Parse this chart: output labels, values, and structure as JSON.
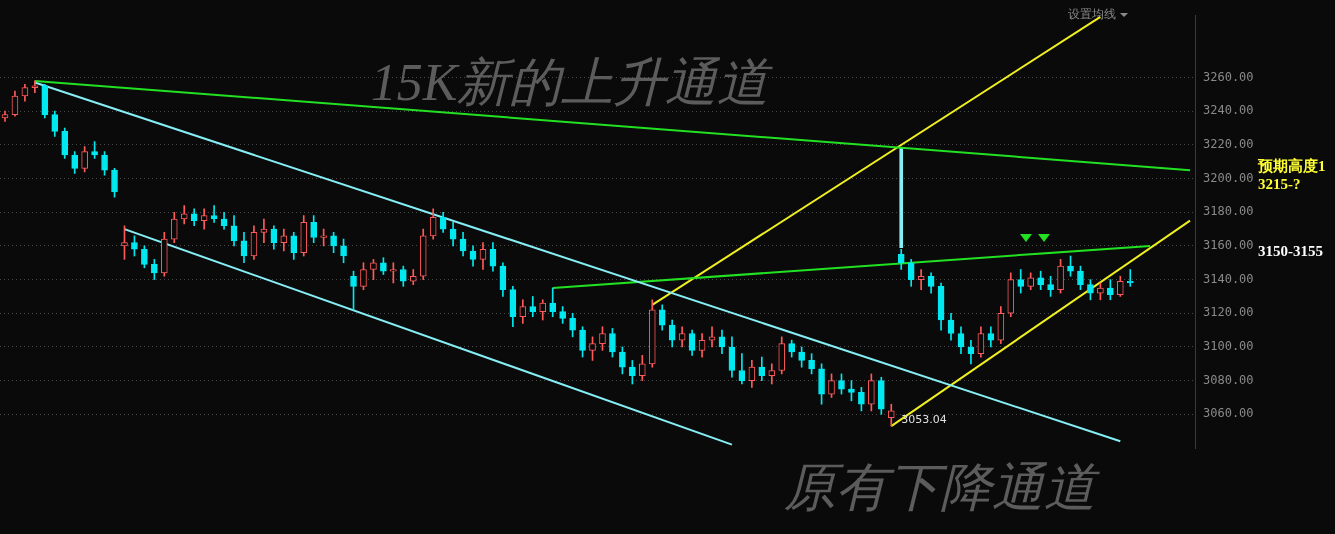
{
  "chart_data": {
    "type": "candlestick",
    "title": "15K新的上升通道",
    "categories": [
      null,
      null,
      null,
      null,
      null,
      null,
      null,
      null,
      null,
      null,
      null,
      null,
      null,
      null,
      null,
      null,
      null,
      null,
      null,
      null,
      null,
      null,
      null,
      null,
      null,
      null,
      null,
      null,
      null,
      null,
      null,
      null,
      null,
      null,
      null,
      null,
      null,
      null,
      null,
      null,
      null,
      null,
      null,
      null,
      null,
      null,
      null,
      null,
      null,
      null,
      null,
      null,
      null,
      null,
      null,
      null,
      null,
      null,
      null,
      null,
      null,
      null,
      null,
      null,
      null,
      null,
      null,
      null,
      null,
      null,
      null,
      null,
      null,
      null,
      null,
      null,
      null,
      null,
      null,
      null,
      null,
      null,
      null,
      null,
      null,
      null,
      null,
      null,
      null,
      null,
      null,
      null,
      null,
      null,
      null,
      null,
      null,
      null,
      null,
      null,
      null,
      null,
      null,
      null,
      null,
      null,
      null,
      null,
      null,
      null,
      null,
      null,
      null,
      null,
      null,
      null,
      null,
      null,
      null,
      null
    ],
    "series": [
      {
        "ohlc": [
          [
            3236,
            3240,
            3234,
            3238
          ],
          [
            3238,
            3252,
            3237,
            3249
          ],
          [
            3249,
            3256,
            3246,
            3254
          ],
          [
            3254,
            3258,
            3251,
            3255
          ],
          [
            3255,
            3256,
            3236,
            3238
          ],
          [
            3238,
            3240,
            3225,
            3228
          ],
          [
            3228,
            3230,
            3212,
            3214
          ],
          [
            3214,
            3216,
            3203,
            3206
          ],
          [
            3206,
            3219,
            3204,
            3216
          ],
          [
            3216,
            3222,
            3212,
            3214
          ],
          [
            3214,
            3216,
            3202,
            3205
          ],
          [
            3205,
            3206,
            3189,
            3192
          ],
          [
            3160,
            3172,
            3152,
            3162
          ],
          [
            3162,
            3166,
            3154,
            3158
          ],
          [
            3158,
            3160,
            3147,
            3149
          ],
          [
            3149,
            3152,
            3140,
            3144
          ],
          [
            3144,
            3168,
            3142,
            3164
          ],
          [
            3164,
            3180,
            3162,
            3176
          ],
          [
            3176,
            3184,
            3173,
            3179
          ],
          [
            3179,
            3182,
            3172,
            3175
          ],
          [
            3175,
            3182,
            3170,
            3178
          ],
          [
            3178,
            3184,
            3174,
            3176
          ],
          [
            3176,
            3180,
            3170,
            3172
          ],
          [
            3172,
            3178,
            3160,
            3163
          ],
          [
            3163,
            3168,
            3150,
            3154
          ],
          [
            3154,
            3172,
            3152,
            3168
          ],
          [
            3168,
            3176,
            3162,
            3170
          ],
          [
            3170,
            3172,
            3158,
            3162
          ],
          [
            3162,
            3170,
            3157,
            3166
          ],
          [
            3166,
            3168,
            3152,
            3156
          ],
          [
            3156,
            3178,
            3154,
            3174
          ],
          [
            3174,
            3178,
            3162,
            3165
          ],
          [
            3165,
            3170,
            3160,
            3166
          ],
          [
            3166,
            3168,
            3156,
            3160
          ],
          [
            3160,
            3164,
            3150,
            3154
          ],
          [
            3142,
            3145,
            3122,
            3136
          ],
          [
            3136,
            3150,
            3134,
            3146
          ],
          [
            3146,
            3152,
            3140,
            3150
          ],
          [
            3150,
            3153,
            3143,
            3145
          ],
          [
            3145,
            3150,
            3138,
            3146
          ],
          [
            3146,
            3148,
            3136,
            3139
          ],
          [
            3139,
            3146,
            3137,
            3142
          ],
          [
            3142,
            3170,
            3140,
            3166
          ],
          [
            3166,
            3182,
            3164,
            3177
          ],
          [
            3177,
            3180,
            3168,
            3170
          ],
          [
            3170,
            3174,
            3160,
            3164
          ],
          [
            3164,
            3168,
            3154,
            3157
          ],
          [
            3157,
            3160,
            3148,
            3152
          ],
          [
            3152,
            3162,
            3146,
            3158
          ],
          [
            3158,
            3162,
            3145,
            3148
          ],
          [
            3148,
            3150,
            3130,
            3134
          ],
          [
            3134,
            3136,
            3112,
            3118
          ],
          [
            3118,
            3128,
            3114,
            3124
          ],
          [
            3124,
            3130,
            3118,
            3121
          ],
          [
            3121,
            3128,
            3116,
            3126
          ],
          [
            3126,
            3135,
            3118,
            3121
          ],
          [
            3121,
            3124,
            3114,
            3117
          ],
          [
            3117,
            3120,
            3106,
            3110
          ],
          [
            3110,
            3112,
            3094,
            3098
          ],
          [
            3098,
            3106,
            3092,
            3102
          ],
          [
            3102,
            3112,
            3098,
            3108
          ],
          [
            3108,
            3111,
            3094,
            3097
          ],
          [
            3097,
            3100,
            3084,
            3088
          ],
          [
            3088,
            3092,
            3078,
            3083
          ],
          [
            3083,
            3095,
            3080,
            3090
          ],
          [
            3090,
            3128,
            3088,
            3122
          ],
          [
            3122,
            3125,
            3110,
            3113
          ],
          [
            3113,
            3116,
            3100,
            3104
          ],
          [
            3104,
            3112,
            3100,
            3108
          ],
          [
            3108,
            3110,
            3095,
            3098
          ],
          [
            3098,
            3108,
            3094,
            3104
          ],
          [
            3104,
            3112,
            3100,
            3106
          ],
          [
            3106,
            3110,
            3096,
            3100
          ],
          [
            3100,
            3106,
            3082,
            3086
          ],
          [
            3086,
            3096,
            3078,
            3080
          ],
          [
            3080,
            3092,
            3076,
            3088
          ],
          [
            3088,
            3094,
            3080,
            3083
          ],
          [
            3083,
            3090,
            3078,
            3086
          ],
          [
            3086,
            3106,
            3084,
            3102
          ],
          [
            3102,
            3104,
            3094,
            3097
          ],
          [
            3097,
            3100,
            3088,
            3092
          ],
          [
            3092,
            3096,
            3084,
            3087
          ],
          [
            3087,
            3090,
            3066,
            3072
          ],
          [
            3072,
            3084,
            3070,
            3080
          ],
          [
            3080,
            3084,
            3072,
            3075
          ],
          [
            3075,
            3080,
            3068,
            3073
          ],
          [
            3073,
            3076,
            3062,
            3066
          ],
          [
            3066,
            3084,
            3062,
            3080
          ],
          [
            3080,
            3082,
            3060,
            3063
          ],
          [
            3058,
            3066,
            3053.04,
            3062
          ],
          [
            3155,
            3158,
            3146,
            3150
          ],
          [
            3150,
            3152,
            3136,
            3140
          ],
          [
            3140,
            3146,
            3134,
            3142
          ],
          [
            3142,
            3144,
            3132,
            3136
          ],
          [
            3136,
            3138,
            3110,
            3116
          ],
          [
            3116,
            3120,
            3104,
            3108
          ],
          [
            3108,
            3112,
            3096,
            3100
          ],
          [
            3100,
            3104,
            3090,
            3096
          ],
          [
            3096,
            3112,
            3094,
            3108
          ],
          [
            3108,
            3112,
            3100,
            3104
          ],
          [
            3104,
            3124,
            3102,
            3120
          ],
          [
            3120,
            3144,
            3118,
            3140
          ],
          [
            3140,
            3146,
            3132,
            3136
          ],
          [
            3136,
            3144,
            3134,
            3141
          ],
          [
            3141,
            3145,
            3134,
            3137
          ],
          [
            3137,
            3142,
            3130,
            3134
          ],
          [
            3134,
            3152,
            3132,
            3148
          ],
          [
            3148,
            3154,
            3142,
            3145
          ],
          [
            3145,
            3148,
            3134,
            3137
          ],
          [
            3137,
            3140,
            3128,
            3132
          ],
          [
            3132,
            3138,
            3128,
            3135
          ],
          [
            3135,
            3140,
            3128,
            3131
          ],
          [
            3131,
            3142,
            3130,
            3139
          ],
          [
            3139,
            3146,
            3136,
            3138
          ],
          null,
          null,
          null,
          null,
          null,
          null
        ]
      },
      {
        "type": "line",
        "color": "#22e022",
        "values": [
          null,
          null,
          null,
          3258,
          null,
          null,
          null,
          null,
          null,
          null,
          null,
          null,
          null,
          null,
          null,
          null,
          null,
          null,
          null,
          null,
          null,
          null,
          null,
          null,
          null,
          null,
          null,
          null,
          null,
          null,
          null,
          null,
          null,
          null,
          null,
          null,
          null,
          null,
          null,
          null,
          null,
          null,
          null,
          null,
          null,
          null,
          null,
          null,
          null,
          null,
          null,
          null,
          null,
          null,
          null,
          null,
          null,
          null,
          null,
          null,
          null,
          null,
          null,
          null,
          null,
          null,
          null,
          null,
          null,
          null,
          null,
          null,
          null,
          null,
          null,
          null,
          null,
          null,
          null,
          null,
          null,
          null,
          null,
          null,
          null,
          null,
          null,
          null,
          null,
          null,
          null,
          null,
          null,
          null,
          null,
          null,
          null,
          null,
          null,
          null,
          null,
          null,
          null,
          null,
          null,
          null,
          null,
          null,
          null,
          null,
          null,
          null,
          null,
          null,
          null,
          null,
          null,
          null,
          null,
          3205
        ]
      },
      {
        "type": "line",
        "color": "#86eef5",
        "values": [
          null,
          null,
          null,
          3257,
          null,
          null,
          null,
          null,
          null,
          null,
          null,
          null,
          null,
          null,
          null,
          null,
          null,
          null,
          null,
          null,
          null,
          null,
          null,
          null,
          null,
          null,
          null,
          null,
          null,
          null,
          null,
          null,
          null,
          null,
          null,
          null,
          null,
          null,
          null,
          null,
          null,
          null,
          null,
          null,
          null,
          null,
          null,
          null,
          null,
          null,
          null,
          null,
          null,
          null,
          null,
          null,
          null,
          null,
          null,
          null,
          null,
          null,
          null,
          null,
          null,
          null,
          null,
          null,
          null,
          null,
          null,
          null,
          null,
          null,
          null,
          null,
          null,
          null,
          null,
          null,
          null,
          null,
          null,
          null,
          null,
          null,
          null,
          null,
          null,
          null,
          null,
          null,
          null,
          null,
          null,
          null,
          null,
          null,
          null,
          null,
          null,
          null,
          null,
          null,
          null,
          null,
          null,
          null,
          null,
          null,
          null,
          null,
          3044,
          null,
          null,
          null,
          null,
          null,
          null,
          null
        ]
      },
      {
        "type": "line",
        "color": "#86eef5",
        "values": [
          null,
          null,
          null,
          null,
          null,
          null,
          null,
          null,
          null,
          null,
          null,
          null,
          3170,
          null,
          null,
          null,
          null,
          null,
          null,
          null,
          null,
          null,
          null,
          null,
          null,
          null,
          null,
          null,
          null,
          null,
          null,
          null,
          null,
          null,
          null,
          null,
          null,
          null,
          null,
          null,
          null,
          null,
          null,
          null,
          null,
          null,
          null,
          null,
          null,
          null,
          null,
          null,
          null,
          null,
          null,
          null,
          null,
          null,
          null,
          null,
          null,
          null,
          null,
          null,
          null,
          null,
          null,
          null,
          null,
          null,
          null,
          null,
          null,
          3042,
          null,
          null,
          null,
          null,
          null,
          null,
          null,
          null,
          null,
          null,
          null,
          null,
          null,
          null,
          null,
          null,
          null,
          null,
          null,
          null,
          null,
          null,
          null,
          null,
          null,
          null,
          null,
          null,
          null,
          null,
          null,
          null,
          null,
          null,
          null,
          null,
          null,
          null,
          null,
          null,
          null,
          null,
          null,
          null,
          null,
          null
        ]
      },
      {
        "type": "line",
        "color": "#22e022",
        "values": [
          null,
          null,
          null,
          null,
          null,
          null,
          null,
          null,
          null,
          null,
          null,
          null,
          null,
          null,
          null,
          null,
          null,
          null,
          null,
          null,
          null,
          null,
          null,
          null,
          null,
          null,
          null,
          null,
          null,
          null,
          null,
          null,
          null,
          null,
          null,
          null,
          null,
          null,
          null,
          null,
          null,
          null,
          null,
          null,
          null,
          null,
          null,
          null,
          null,
          null,
          null,
          null,
          null,
          null,
          null,
          3135,
          null,
          null,
          null,
          null,
          null,
          null,
          null,
          null,
          null,
          null,
          null,
          null,
          null,
          null,
          null,
          null,
          null,
          null,
          null,
          null,
          null,
          null,
          null,
          null,
          null,
          null,
          null,
          null,
          null,
          null,
          null,
          null,
          null,
          null,
          null,
          null,
          null,
          null,
          null,
          null,
          null,
          null,
          null,
          null,
          null,
          null,
          null,
          null,
          null,
          null,
          null,
          null,
          null,
          null,
          null,
          null,
          null,
          null,
          null,
          3160,
          null,
          null,
          null,
          null
        ]
      },
      {
        "type": "line",
        "color": "#f0f020",
        "values": [
          null,
          null,
          null,
          null,
          null,
          null,
          null,
          null,
          null,
          null,
          null,
          null,
          null,
          null,
          null,
          null,
          null,
          null,
          null,
          null,
          null,
          null,
          null,
          null,
          null,
          null,
          null,
          null,
          null,
          null,
          null,
          null,
          null,
          null,
          null,
          null,
          null,
          null,
          null,
          null,
          null,
          null,
          null,
          null,
          null,
          null,
          null,
          null,
          null,
          null,
          null,
          null,
          null,
          null,
          null,
          null,
          null,
          null,
          null,
          null,
          null,
          null,
          null,
          null,
          null,
          3125,
          null,
          null,
          null,
          null,
          null,
          null,
          null,
          null,
          null,
          null,
          null,
          null,
          null,
          null,
          null,
          null,
          null,
          null,
          null,
          null,
          null,
          null,
          null,
          null,
          null,
          null,
          null,
          null,
          null,
          null,
          null,
          null,
          null,
          null,
          null,
          null,
          null,
          null,
          null,
          null,
          null,
          null,
          null,
          null,
          3296,
          null,
          null,
          null,
          null,
          null,
          null,
          null,
          null,
          null
        ]
      },
      {
        "type": "line",
        "color": "#f0f020",
        "values": [
          null,
          null,
          null,
          null,
          null,
          null,
          null,
          null,
          null,
          null,
          null,
          null,
          null,
          null,
          null,
          null,
          null,
          null,
          null,
          null,
          null,
          null,
          null,
          null,
          null,
          null,
          null,
          null,
          null,
          null,
          null,
          null,
          null,
          null,
          null,
          null,
          null,
          null,
          null,
          null,
          null,
          null,
          null,
          null,
          null,
          null,
          null,
          null,
          null,
          null,
          null,
          null,
          null,
          null,
          null,
          null,
          null,
          null,
          null,
          null,
          null,
          null,
          null,
          null,
          null,
          null,
          null,
          null,
          null,
          null,
          null,
          null,
          null,
          null,
          null,
          null,
          null,
          null,
          null,
          null,
          null,
          null,
          null,
          null,
          null,
          null,
          null,
          null,
          null,
          3053,
          null,
          null,
          null,
          null,
          null,
          null,
          null,
          null,
          null,
          null,
          null,
          null,
          null,
          null,
          null,
          null,
          null,
          null,
          null,
          null,
          null,
          null,
          null,
          null,
          null,
          null,
          null,
          null,
          null,
          3175
        ]
      },
      {
        "type": "bar",
        "color": "#86eef5",
        "values": [
          null,
          null,
          null,
          null,
          null,
          null,
          null,
          null,
          null,
          null,
          null,
          null,
          null,
          null,
          null,
          null,
          null,
          null,
          null,
          null,
          null,
          null,
          null,
          null,
          null,
          null,
          null,
          null,
          null,
          null,
          null,
          null,
          null,
          null,
          null,
          null,
          null,
          null,
          null,
          null,
          null,
          null,
          null,
          null,
          null,
          null,
          null,
          null,
          null,
          null,
          null,
          null,
          null,
          null,
          null,
          null,
          null,
          null,
          null,
          null,
          null,
          null,
          null,
          null,
          null,
          null,
          null,
          null,
          null,
          null,
          null,
          null,
          null,
          null,
          null,
          null,
          null,
          null,
          null,
          null,
          null,
          null,
          null,
          null,
          null,
          null,
          null,
          null,
          null,
          null,
          59,
          null,
          null,
          null,
          null,
          null,
          null,
          null,
          null,
          null,
          null,
          null,
          null,
          null,
          null,
          null,
          null,
          null,
          null,
          null,
          null,
          null,
          null,
          null,
          null,
          null,
          null,
          null,
          null,
          null
        ],
        "base": [
          null,
          null,
          null,
          null,
          null,
          null,
          null,
          null,
          null,
          null,
          null,
          null,
          null,
          null,
          null,
          null,
          null,
          null,
          null,
          null,
          null,
          null,
          null,
          null,
          null,
          null,
          null,
          null,
          null,
          null,
          null,
          null,
          null,
          null,
          null,
          null,
          null,
          null,
          null,
          null,
          null,
          null,
          null,
          null,
          null,
          null,
          null,
          null,
          null,
          null,
          null,
          null,
          null,
          null,
          null,
          null,
          null,
          null,
          null,
          null,
          null,
          null,
          null,
          null,
          null,
          null,
          null,
          null,
          null,
          null,
          null,
          null,
          null,
          null,
          null,
          null,
          null,
          null,
          null,
          null,
          null,
          null,
          null,
          null,
          null,
          null,
          null,
          null,
          null,
          null,
          3159,
          null,
          null,
          null,
          null,
          null,
          null,
          null,
          null,
          null,
          null,
          null,
          null,
          null,
          null,
          null,
          null,
          null,
          null,
          null,
          null,
          null,
          null,
          null,
          null,
          null,
          null,
          null,
          null,
          null
        ]
      }
    ],
    "ylim": [
      3040,
      3297
    ],
    "yticks": [
      {
        "value": 3060,
        "label": "3060.00"
      },
      {
        "value": 3080,
        "label": "3080.00"
      },
      {
        "value": 3100,
        "label": "3100.00"
      },
      {
        "value": 3120,
        "label": "3120.00"
      },
      {
        "value": 3140,
        "label": "3140.00"
      },
      {
        "value": 3160,
        "label": "3160.00"
      },
      {
        "value": 3180,
        "label": "3180.00"
      },
      {
        "value": 3200,
        "label": "3200.00"
      },
      {
        "value": 3220,
        "label": "3220.00"
      },
      {
        "value": 3240,
        "label": "3240.00"
      },
      {
        "value": 3260,
        "label": "3260.00"
      }
    ],
    "annotations": [
      "设置均线",
      "原有下降通道",
      "3053.04",
      "预期高度1\n3215-?",
      "3150-3155"
    ],
    "grid": "y",
    "tick_labels": "y",
    "legend": false
  }
}
